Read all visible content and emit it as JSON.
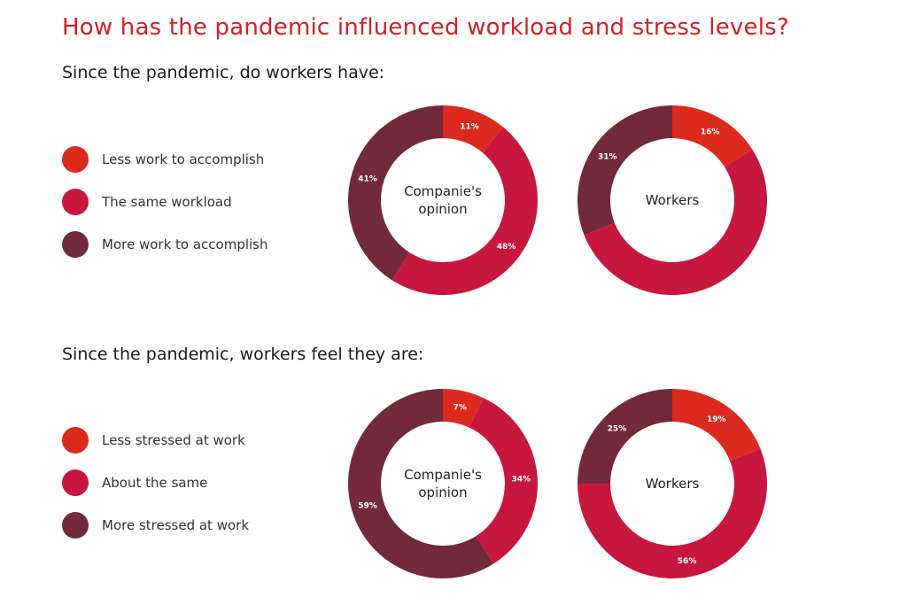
{
  "title": "How has the pandemic influenced workload and stress levels?",
  "colors": {
    "title": "#d32027",
    "less": "#dc2a1f",
    "same": "#c8173f",
    "more": "#722a3b"
  },
  "sections": [
    {
      "subtitle": "Since the pandemic, do workers have:",
      "legend": [
        {
          "label": "Less work to accomplish",
          "color": "#dc2a1f"
        },
        {
          "label": "The same workload",
          "color": "#c8173f"
        },
        {
          "label": "More work to accomplish",
          "color": "#722a3b"
        }
      ]
    },
    {
      "subtitle": "Since the pandemic, workers feel they are:",
      "legend": [
        {
          "label": "Less stressed at work",
          "color": "#dc2a1f"
        },
        {
          "label": "About the same",
          "color": "#c8173f"
        },
        {
          "label": "More stressed at work",
          "color": "#722a3b"
        }
      ]
    }
  ],
  "chart_data": [
    {
      "type": "pie",
      "title": "Companie's opinion",
      "center_label": [
        "Companie's",
        "opinion"
      ],
      "categories": [
        "Less work to accomplish",
        "The same workload",
        "More work to accomplish"
      ],
      "values": [
        11,
        48,
        41
      ],
      "labels": [
        "11%",
        "48%",
        "41%"
      ]
    },
    {
      "type": "pie",
      "title": "Workers",
      "center_label": [
        "Workers"
      ],
      "categories": [
        "Less work to accomplish",
        "The same workload",
        "More work to accomplish"
      ],
      "values": [
        16,
        53,
        31
      ],
      "labels": [
        "16%",
        "",
        "31%"
      ]
    },
    {
      "type": "pie",
      "title": "Companie's opinion",
      "center_label": [
        "Companie's",
        "opinion"
      ],
      "categories": [
        "Less stressed at work",
        "About the same",
        "More stressed at work"
      ],
      "values": [
        7,
        34,
        59
      ],
      "labels": [
        "7%",
        "34%",
        "59%"
      ]
    },
    {
      "type": "pie",
      "title": "Workers",
      "center_label": [
        "Workers"
      ],
      "categories": [
        "Less stressed at work",
        "About the same",
        "More stressed at work"
      ],
      "values": [
        19,
        56,
        25
      ],
      "labels": [
        "19%",
        "56%",
        "25%"
      ]
    }
  ]
}
